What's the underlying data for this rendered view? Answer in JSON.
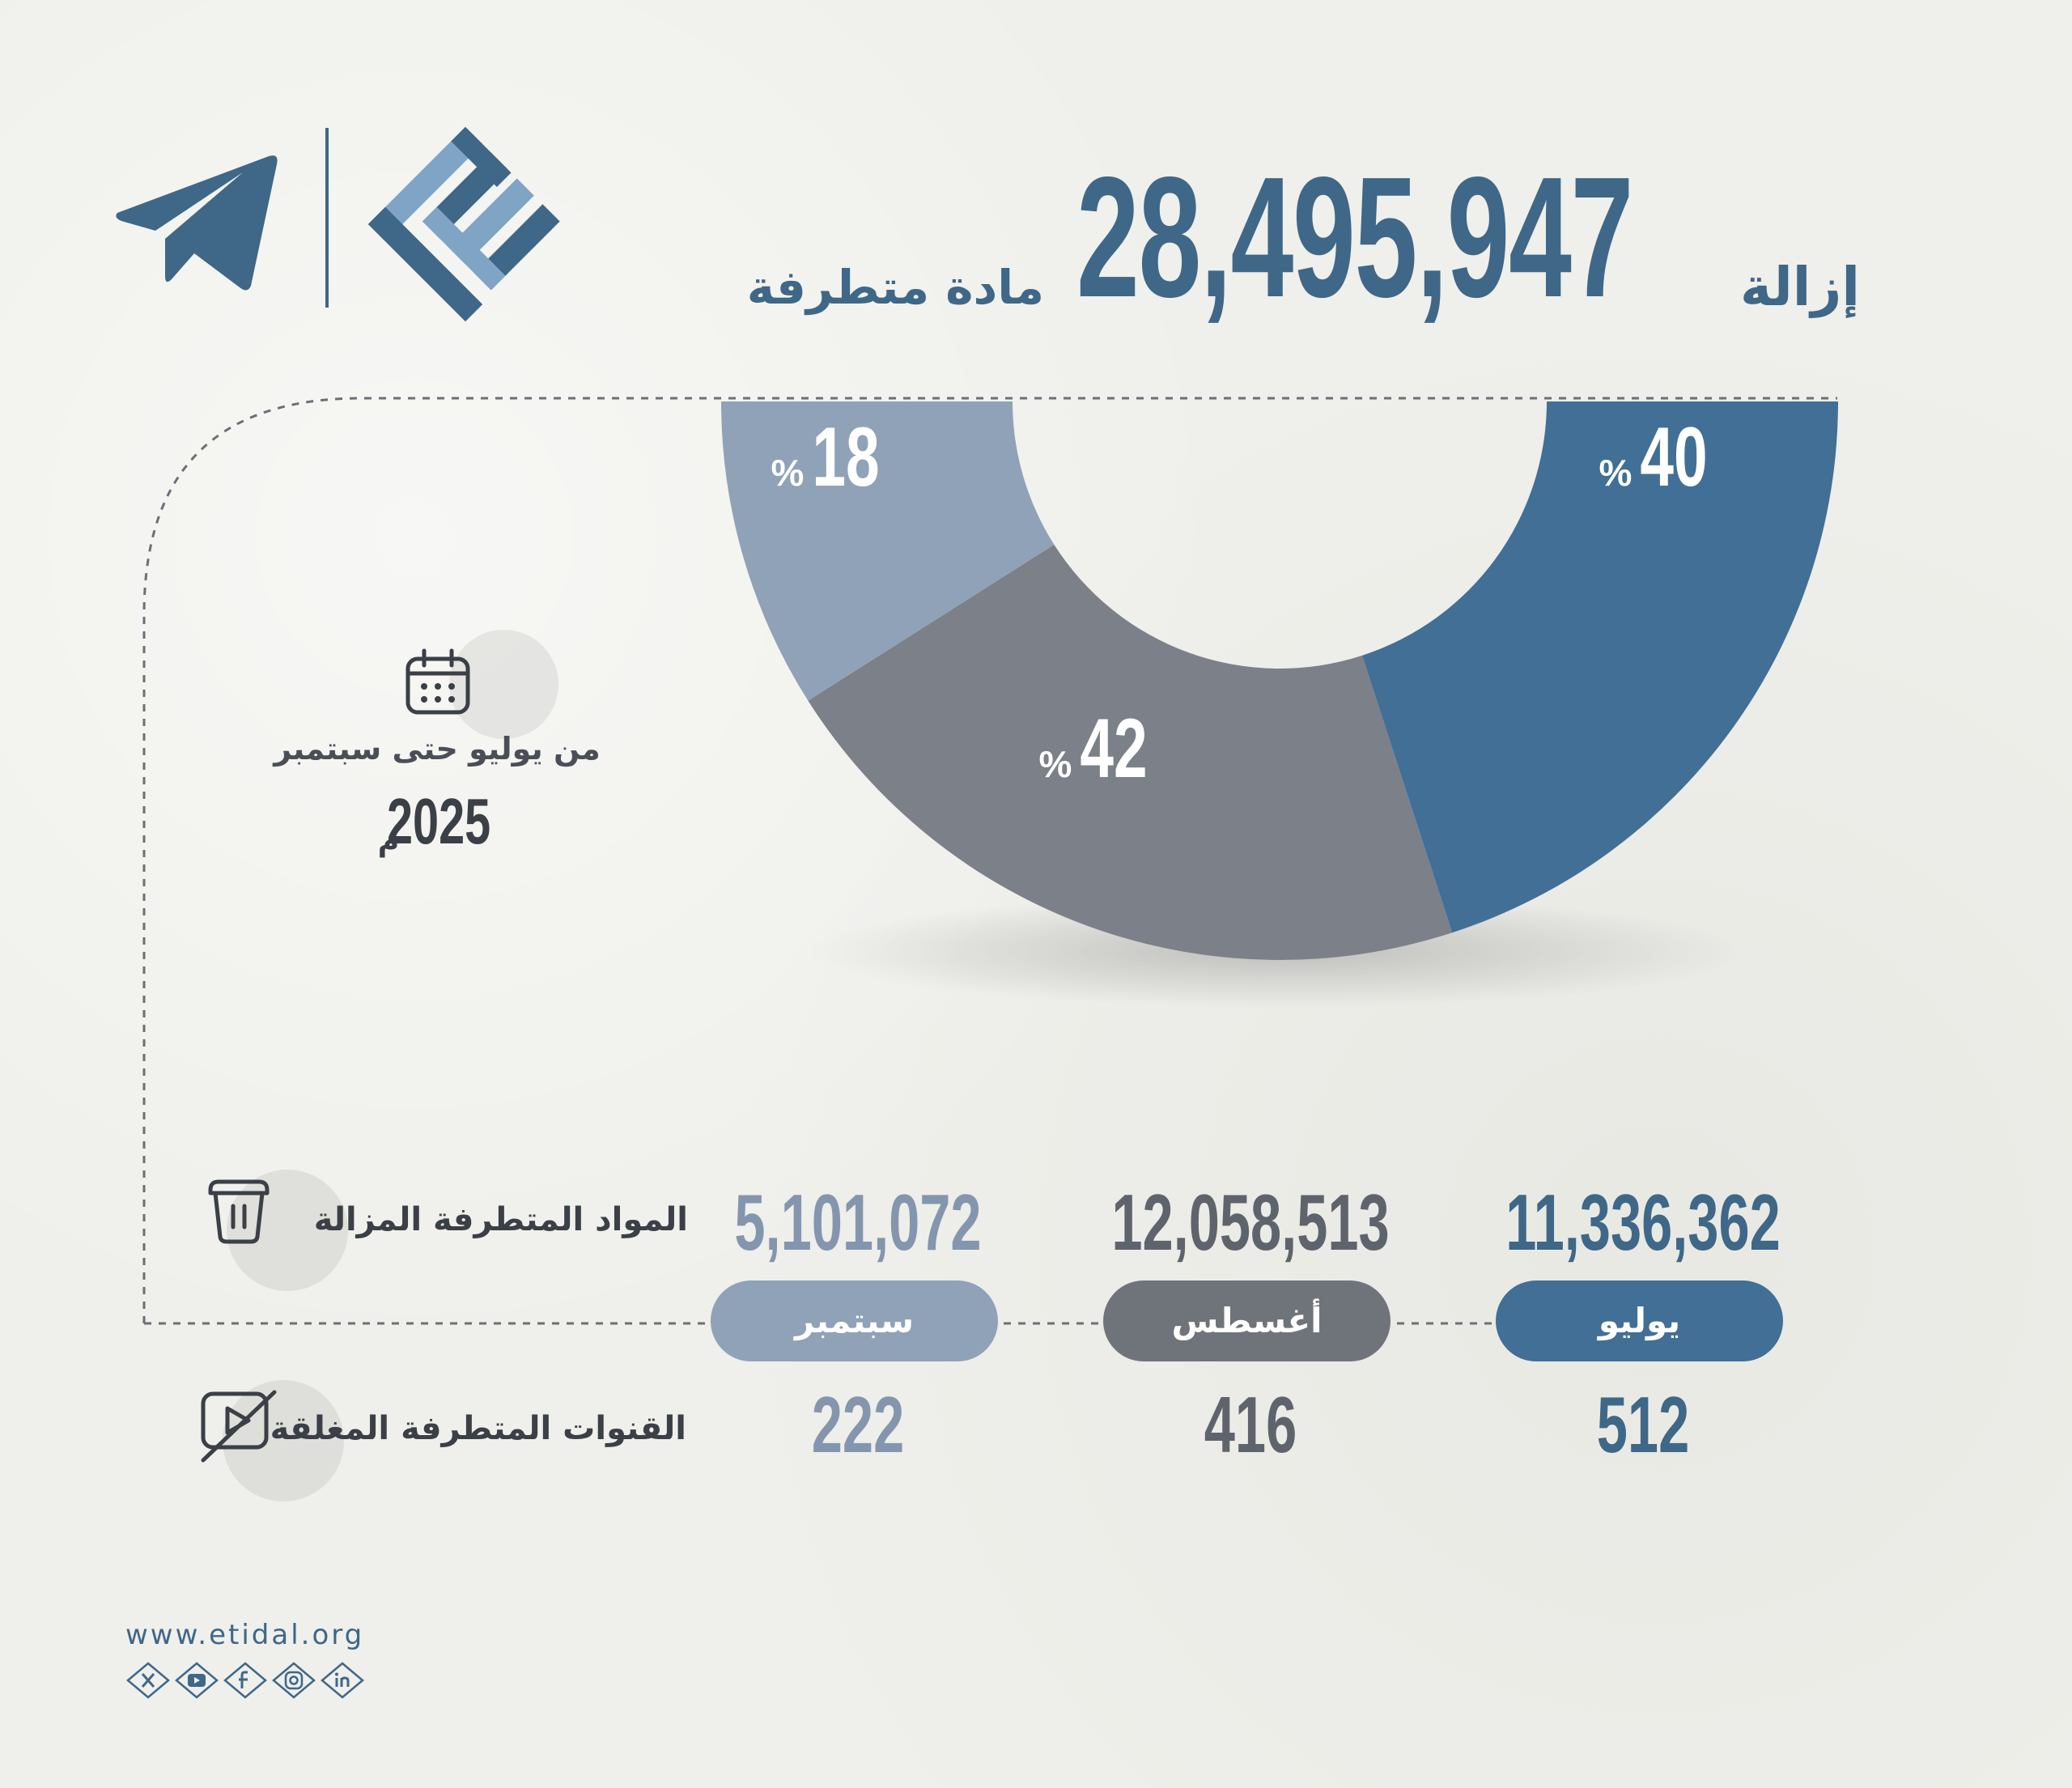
{
  "header": {
    "removal_word": "إزالة",
    "total": "28,495,947",
    "subtitle": "مادة متطرفة"
  },
  "period": {
    "label": "من يوليو حتى سبتمبر",
    "year": "2025",
    "year_suffix": "م"
  },
  "rows": {
    "removed_label": "المواد المتطرفة المزالة",
    "closed_label": "القنوات المتطرفة المغلقة"
  },
  "months": [
    {
      "name": "يوليو",
      "removed": "11,336,362",
      "channels": "512",
      "color": "#416f96"
    },
    {
      "name": "أغسطس",
      "removed": "12,058,513",
      "channels": "416",
      "color": "#6f747b"
    },
    {
      "name": "سبتمبر",
      "removed": "5,101,072",
      "channels": "222",
      "color": "#8fa2b7"
    }
  ],
  "chart_data": {
    "type": "pie",
    "style": "half-donut",
    "categories": [
      "يوليو",
      "أغسطس",
      "سبتمبر"
    ],
    "values": [
      40,
      42,
      18
    ],
    "labels": [
      "40",
      "42",
      "18"
    ],
    "unit": "%",
    "colors": [
      "#416f96",
      "#7b8089",
      "#8fa2b7"
    ]
  },
  "footer": {
    "url": "www.etidal.org",
    "social_icons": [
      "x-icon",
      "youtube-icon",
      "facebook-icon",
      "instagram-icon",
      "linkedin-icon"
    ]
  }
}
